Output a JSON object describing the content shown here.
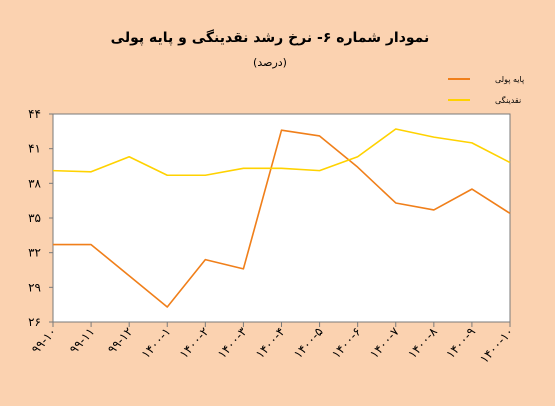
{
  "chart_data": {
    "type": "line",
    "title": "نمودار شماره ۶- نرخ رشد نقدینگی و پایه پولی",
    "subtitle": "(درصد)",
    "xlabel": "",
    "ylabel": "",
    "categories": [
      "۹۹-۱۰",
      "۹۹-۱۱",
      "۹۹-۱۲",
      "۱۴۰۰-۱",
      "۱۴۰۰-۲",
      "۱۴۰۰-۳",
      "۱۴۰۰-۴",
      "۱۴۰۰-۵",
      "۱۴۰۰-۶",
      "۱۴۰۰-۷",
      "۱۴۰۰-۸",
      "۱۴۰۰-۹",
      "۱۴۰۰-۱۰"
    ],
    "yticks": [
      {
        "value": 26,
        "label": "۲۶"
      },
      {
        "value": 29,
        "label": "۲۹"
      },
      {
        "value": 32,
        "label": "۳۲"
      },
      {
        "value": 35,
        "label": "۳۵"
      },
      {
        "value": 38,
        "label": "۳۸"
      },
      {
        "value": 41,
        "label": "۴۱"
      },
      {
        "value": 44,
        "label": "۴۴"
      }
    ],
    "ylim": [
      26,
      44
    ],
    "series": [
      {
        "name": "پایه پولی",
        "color": "#f07f1a",
        "values": [
          32.7,
          32.7,
          30.0,
          27.3,
          31.4,
          30.6,
          42.6,
          42.1,
          39.4,
          36.3,
          35.7,
          37.5,
          35.4
        ]
      },
      {
        "name": "نقدینگی",
        "color": "#ffd200",
        "values": [
          39.1,
          39.0,
          40.3,
          38.7,
          38.7,
          39.3,
          39.3,
          39.1,
          40.3,
          42.7,
          42.0,
          41.5,
          39.8
        ]
      }
    ],
    "grid": false,
    "legend": "top-right"
  }
}
